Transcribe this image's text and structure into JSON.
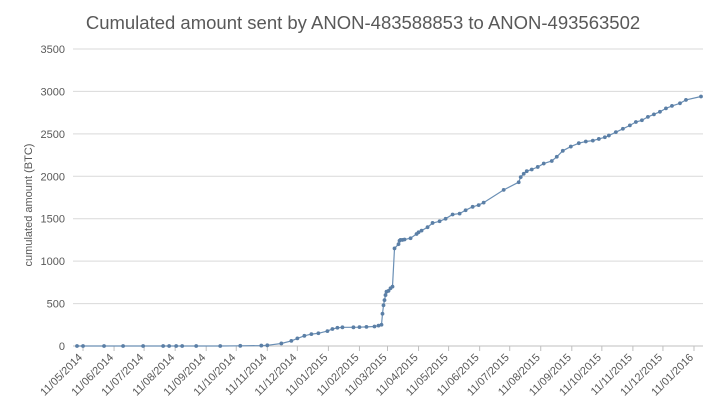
{
  "chart_data": {
    "type": "line",
    "title": "Cumulated amount sent by ANON-483588853 to ANON-493563502",
    "xlabel": "",
    "ylabel": "cumulated amount (BTC)",
    "ylim": [
      0,
      3500
    ],
    "xlim": [
      "2014-05-01",
      "2016-01-20"
    ],
    "y_ticks": [
      0,
      500,
      1000,
      1500,
      2000,
      2500,
      3000,
      3500
    ],
    "x_tick_labels": [
      "11/05/2014",
      "11/06/2014",
      "11/07/2014",
      "11/08/2014",
      "11/09/2014",
      "11/10/2014",
      "11/11/2014",
      "11/12/2014",
      "11/01/2015",
      "11/02/2015",
      "11/03/2015",
      "11/04/2015",
      "11/05/2015",
      "11/06/2015",
      "11/07/2015",
      "11/08/2015",
      "11/09/2015",
      "11/10/2015",
      "11/11/2015",
      "11/12/2015",
      "11/01/2016"
    ],
    "grid": true,
    "legend": "none",
    "line_color": "#6a8fb5",
    "marker_color": "#5b7fa6",
    "series": [
      {
        "x": [
          "2014-05-05",
          "2014-05-11",
          "2014-06-01",
          "2014-06-20",
          "2014-07-10",
          "2014-07-30",
          "2014-08-05",
          "2014-08-12",
          "2014-08-18",
          "2014-09-01",
          "2014-09-25",
          "2014-10-15",
          "2014-11-05",
          "2014-11-11",
          "2014-11-25",
          "2014-12-05",
          "2014-12-11",
          "2014-12-18",
          "2014-12-25",
          "2015-01-01",
          "2015-01-10",
          "2015-01-15",
          "2015-01-20",
          "2015-01-25",
          "2015-02-05",
          "2015-02-11",
          "2015-02-18",
          "2015-02-26",
          "2015-03-02",
          "2015-03-05",
          "2015-03-06",
          "2015-03-07",
          "2015-03-08",
          "2015-03-09",
          "2015-03-10",
          "2015-03-12",
          "2015-03-14",
          "2015-03-16",
          "2015-03-18",
          "2015-03-22",
          "2015-03-23",
          "2015-03-24",
          "2015-03-26",
          "2015-03-28",
          "2015-04-03",
          "2015-04-09",
          "2015-04-11",
          "2015-04-14",
          "2015-04-20",
          "2015-04-25",
          "2015-05-02",
          "2015-05-08",
          "2015-05-15",
          "2015-05-22",
          "2015-05-28",
          "2015-06-04",
          "2015-06-10",
          "2015-06-15",
          "2015-07-05",
          "2015-07-20",
          "2015-07-22",
          "2015-07-25",
          "2015-07-28",
          "2015-08-02",
          "2015-08-08",
          "2015-08-14",
          "2015-08-22",
          "2015-08-27",
          "2015-09-02",
          "2015-09-10",
          "2015-09-18",
          "2015-09-25",
          "2015-10-02",
          "2015-10-08",
          "2015-10-14",
          "2015-10-18",
          "2015-10-25",
          "2015-11-01",
          "2015-11-08",
          "2015-11-14",
          "2015-11-20",
          "2015-11-26",
          "2015-12-02",
          "2015-12-08",
          "2015-12-14",
          "2015-12-20",
          "2015-12-28",
          "2016-01-03",
          "2016-01-18"
        ],
        "y": [
          0,
          0,
          0,
          0,
          0,
          0,
          0,
          0,
          0,
          0,
          0,
          2,
          5,
          8,
          30,
          60,
          90,
          120,
          140,
          150,
          175,
          200,
          215,
          220,
          220,
          222,
          225,
          230,
          240,
          250,
          380,
          480,
          540,
          600,
          640,
          650,
          680,
          700,
          1150,
          1200,
          1240,
          1250,
          1250,
          1255,
          1270,
          1320,
          1340,
          1360,
          1400,
          1450,
          1470,
          1500,
          1550,
          1560,
          1600,
          1640,
          1660,
          1690,
          1840,
          1930,
          1990,
          2030,
          2060,
          2080,
          2110,
          2150,
          2180,
          2230,
          2300,
          2350,
          2390,
          2410,
          2420,
          2440,
          2460,
          2480,
          2520,
          2560,
          2600,
          2640,
          2660,
          2700,
          2730,
          2760,
          2800,
          2830,
          2860,
          2900,
          2940
        ]
      }
    ]
  }
}
